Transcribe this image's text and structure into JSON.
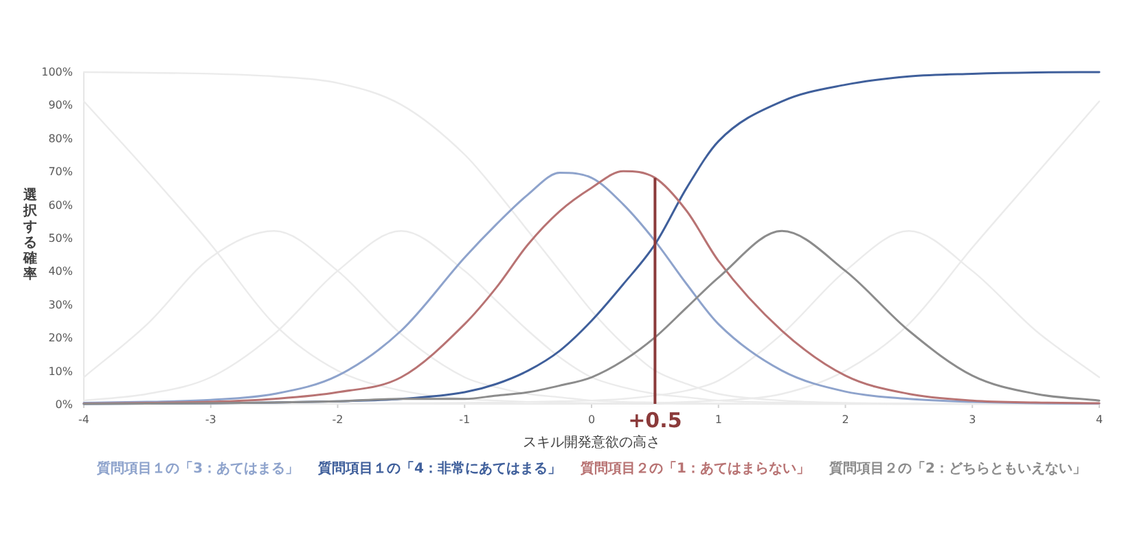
{
  "chart_data": {
    "type": "line",
    "xlabel": "スキル開発意欲の高さ",
    "ylabel": "選択する確率",
    "legend": "bottom",
    "marker": "none",
    "line_style": "solid",
    "xlim": [
      -4,
      4
    ],
    "xticks": [
      -4,
      -3,
      -2,
      -1,
      0,
      1,
      2,
      3,
      4
    ],
    "ylim": [
      0,
      100
    ],
    "yticks": [
      {
        "value": 0,
        "label": "0%"
      },
      {
        "value": 10,
        "label": "10%"
      },
      {
        "value": 20,
        "label": "20%"
      },
      {
        "value": 30,
        "label": "30%"
      },
      {
        "value": 40,
        "label": "40%"
      },
      {
        "value": 50,
        "label": "50%"
      },
      {
        "value": 60,
        "label": "60%"
      },
      {
        "value": 70,
        "label": "70%"
      },
      {
        "value": 80,
        "label": "80%"
      },
      {
        "value": 90,
        "label": "90%"
      },
      {
        "value": 100,
        "label": "100%"
      }
    ],
    "x": [
      -4,
      -3.5,
      -3,
      -2.5,
      -2,
      -1.5,
      -1,
      -0.75,
      -0.5,
      -0.25,
      0,
      0.25,
      0.5,
      0.75,
      1,
      1.5,
      2,
      2.5,
      3,
      3.5,
      4
    ],
    "series": [
      {
        "color": "#ebebeb",
        "values": [
          91,
          70,
          48,
          24,
          10,
          4,
          1.5,
          1,
          0.6,
          0.4,
          0.2,
          0.1,
          0.1,
          0,
          0,
          0,
          0,
          0,
          0,
          0,
          0
        ]
      },
      {
        "color": "#ebebeb",
        "values": [
          8,
          24,
          44,
          52,
          40,
          21,
          8,
          5,
          3,
          2,
          1,
          0.6,
          0.4,
          0.2,
          0.1,
          0,
          0,
          0,
          0,
          0,
          0
        ]
      },
      {
        "color": "#ebebeb",
        "values": [
          1,
          3,
          8,
          21,
          40,
          52,
          40,
          31,
          22,
          14,
          8,
          5,
          3,
          2,
          1,
          0.4,
          0.1,
          0,
          0,
          0,
          0
        ]
      },
      {
        "color": "#ebebeb",
        "values": [
          99.8,
          99.6,
          99.3,
          98.5,
          96.5,
          90,
          75,
          64,
          52,
          40,
          28,
          18,
          10,
          6,
          3,
          1,
          0.3,
          0.1,
          0,
          0,
          0
        ]
      },
      {
        "color": "#ebebeb",
        "values": [
          0,
          0,
          0,
          0,
          0.1,
          0.2,
          0.3,
          0.4,
          0.6,
          0.8,
          1,
          1.5,
          2.5,
          4,
          7,
          21,
          40,
          52,
          40,
          22,
          8
        ]
      },
      {
        "color": "#ebebeb",
        "values": [
          0,
          0,
          0,
          0,
          0,
          0,
          0,
          0,
          0,
          0,
          0.1,
          0.2,
          0.3,
          0.6,
          1,
          3,
          10,
          24,
          47,
          69,
          91
        ]
      },
      {
        "name": "質問項目１の「3：あてはまる」",
        "color": "#8ea3cc",
        "values": [
          0.3,
          0.6,
          1.2,
          3,
          8.5,
          22,
          44,
          54,
          63,
          69.5,
          68,
          60,
          49,
          36,
          24,
          10,
          3.7,
          1.5,
          0.6,
          0.2,
          0.1
        ]
      },
      {
        "name": "質問項目１の「4：非常にあてはまる」",
        "color": "#3f5f9b",
        "values": [
          0,
          0.1,
          0.2,
          0.4,
          0.8,
          1.5,
          3.5,
          6,
          10,
          16,
          25,
          36,
          48,
          65,
          79,
          91,
          96,
          98.5,
          99.3,
          99.7,
          99.8
        ]
      },
      {
        "name": "質問項目２の「1：あてはまらない」",
        "color": "#b87373",
        "values": [
          0.1,
          0.3,
          0.6,
          1.5,
          3.5,
          8,
          24,
          35,
          48,
          58,
          65,
          70,
          68,
          58,
          43,
          22,
          8.5,
          3,
          1,
          0.4,
          0.2
        ]
      },
      {
        "name": "質問項目２の「2：どちらともいえない」",
        "color": "#8c8c8c",
        "values": [
          0,
          0.1,
          0.2,
          0.4,
          0.8,
          1.5,
          1.5,
          2.5,
          3.5,
          5.5,
          8,
          13,
          20,
          29,
          38,
          52,
          40,
          22,
          8.5,
          3,
          1
        ]
      }
    ],
    "ref_lines": [
      {
        "axis": "x",
        "value": 0.5,
        "label": "+0.5",
        "color": "#8b3a3a"
      }
    ]
  }
}
